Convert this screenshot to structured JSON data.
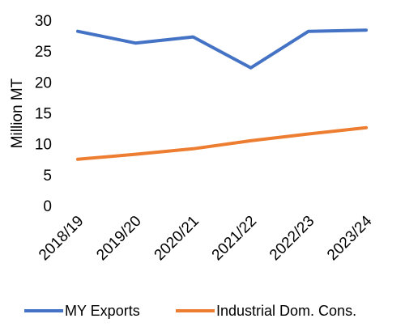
{
  "chart_data": {
    "type": "line",
    "title": "",
    "xlabel": "",
    "ylabel": "Million MT",
    "ylim": [
      0,
      30
    ],
    "yticks": [
      0,
      5,
      10,
      15,
      20,
      25,
      30
    ],
    "grid": false,
    "legend_position": "bottom",
    "categories": [
      "2018/19",
      "2019/20",
      "2020/21",
      "2021/22",
      "2022/23",
      "2023/24"
    ],
    "series": [
      {
        "name": "MY Exports",
        "color": "#4472C4",
        "values": [
          28.2,
          26.3,
          27.3,
          22.3,
          28.2,
          28.4
        ]
      },
      {
        "name": "Industrial Dom. Cons.",
        "color": "#ED7D31",
        "values": [
          7.5,
          8.3,
          9.2,
          10.5,
          11.6,
          12.6
        ]
      }
    ]
  }
}
